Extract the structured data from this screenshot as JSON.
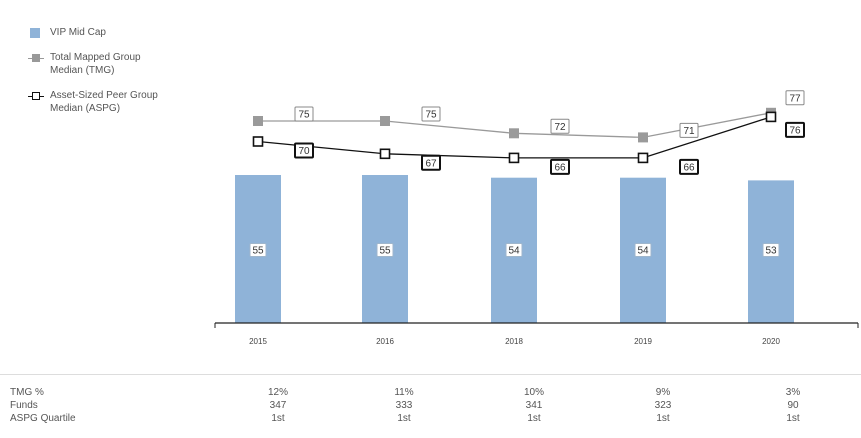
{
  "legend": {
    "bar": "VIP Mid Cap",
    "tmg_line1": "Total Mapped Group",
    "tmg_line2": "Median (TMG)",
    "aspg_line1": "Asset-Sized Peer Group",
    "aspg_line2": "Median (ASPG)"
  },
  "colors": {
    "bar": "#8fb3d8",
    "tmg": "#9a9a9a",
    "aspg": "#111111"
  },
  "chart_data": {
    "type": "bar",
    "categories": [
      "2015",
      "2016",
      "2018",
      "2019",
      "2020"
    ],
    "series": [
      {
        "name": "VIP Mid Cap",
        "type": "bar",
        "values": [
          55,
          55,
          54,
          54,
          53
        ]
      },
      {
        "name": "Total Mapped Group Median (TMG)",
        "type": "line",
        "values": [
          75,
          75,
          72,
          71,
          77
        ]
      },
      {
        "name": "Asset-Sized Peer Group Median (ASPG)",
        "type": "line",
        "values": [
          70,
          67,
          66,
          66,
          76
        ]
      }
    ],
    "legend_position": "top-left",
    "grid": false
  },
  "table": {
    "rows": [
      {
        "label": "TMG %",
        "values": [
          "12%",
          "11%",
          "10%",
          "9%",
          "3%"
        ]
      },
      {
        "label": "Funds",
        "values": [
          "347",
          "333",
          "341",
          "323",
          "90"
        ]
      },
      {
        "label": "ASPG Quartile",
        "values": [
          "1st",
          "1st",
          "1st",
          "1st",
          "1st"
        ]
      }
    ]
  }
}
